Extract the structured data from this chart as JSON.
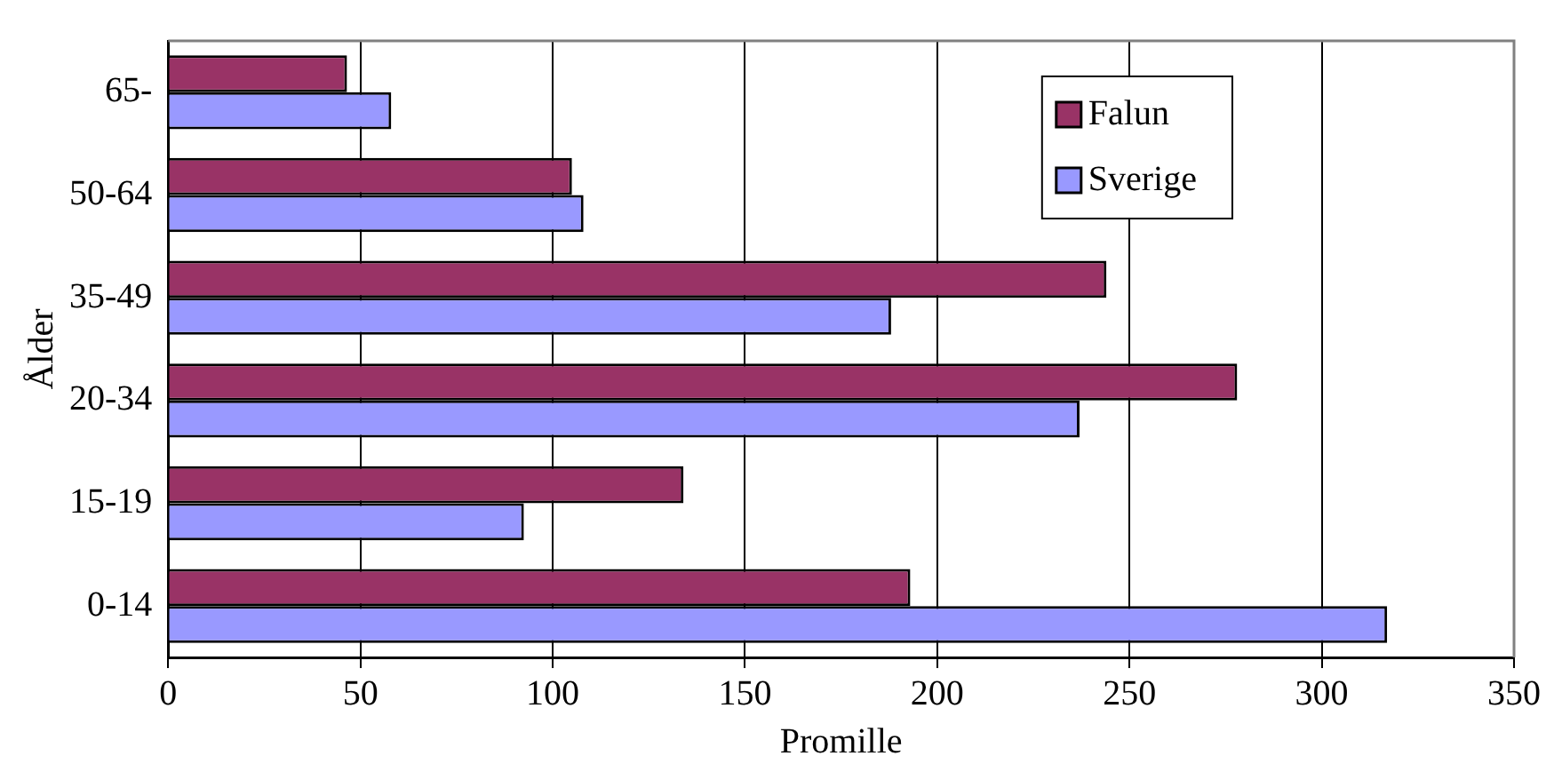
{
  "chart_data": {
    "type": "bar",
    "orientation": "horizontal",
    "xlabel": "Promille",
    "ylabel": "Ålder",
    "categories": [
      "65-",
      "50-64",
      "35-49",
      "20-34",
      "15-19",
      "0-14"
    ],
    "series": [
      {
        "name": "Falun",
        "color": "#993366",
        "values": [
          46.5,
          105,
          244,
          278,
          134,
          193
        ]
      },
      {
        "name": "Sverige",
        "color": "#9999ff",
        "values": [
          58,
          108,
          188,
          237,
          92.5,
          317
        ]
      }
    ],
    "xlim": [
      0,
      350
    ],
    "xticks": [
      0,
      50,
      100,
      150,
      200,
      250,
      300,
      350
    ],
    "grid": "x",
    "legend": "top right"
  }
}
